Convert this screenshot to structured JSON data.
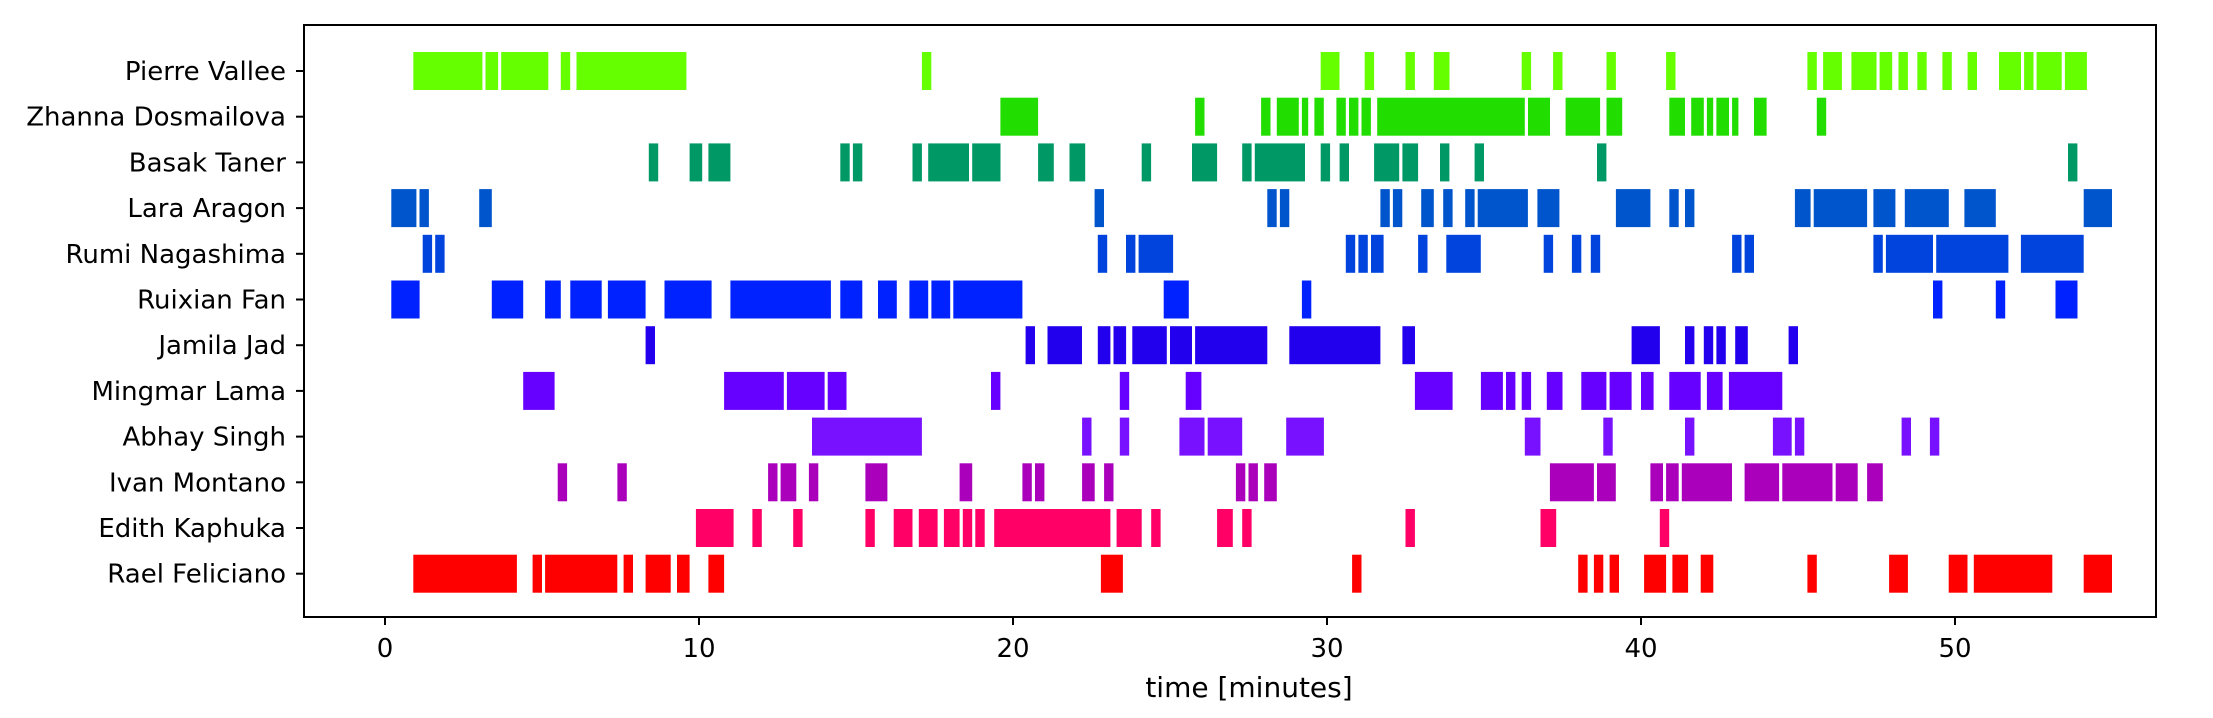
{
  "chart_data": {
    "type": "timeline",
    "xlabel": "time [minutes]",
    "ylabel": "",
    "xlim": [
      -2.6,
      56.4
    ],
    "xticks": [
      0,
      10,
      20,
      30,
      40,
      50
    ],
    "grid": false,
    "legend": "none",
    "series": [
      {
        "name": "Pierre Vallee",
        "color": "#66ff00",
        "segments": [
          [
            0.9,
            3.1
          ],
          [
            3.2,
            3.6
          ],
          [
            3.7,
            5.2
          ],
          [
            5.6,
            5.9
          ],
          [
            6.1,
            9.6
          ],
          [
            17.1,
            17.4
          ],
          [
            29.8,
            30.4
          ],
          [
            31.2,
            31.5
          ],
          [
            32.5,
            32.8
          ],
          [
            33.4,
            33.9
          ],
          [
            36.2,
            36.5
          ],
          [
            37.2,
            37.5
          ],
          [
            38.9,
            39.2
          ],
          [
            40.8,
            41.1
          ],
          [
            45.3,
            45.6
          ],
          [
            45.8,
            46.4
          ],
          [
            46.7,
            47.5
          ],
          [
            47.6,
            48.0
          ],
          [
            48.2,
            48.5
          ],
          [
            48.8,
            49.1
          ],
          [
            49.6,
            49.9
          ],
          [
            50.4,
            50.7
          ],
          [
            51.4,
            52.1
          ],
          [
            52.2,
            52.5
          ],
          [
            52.6,
            53.4
          ],
          [
            53.5,
            54.2
          ]
        ]
      },
      {
        "name": "Zhanna Dosmailova",
        "color": "#22dd00",
        "segments": [
          [
            19.6,
            20.8
          ],
          [
            25.8,
            26.1
          ],
          [
            27.9,
            28.2
          ],
          [
            28.4,
            29.1
          ],
          [
            29.2,
            29.4
          ],
          [
            29.6,
            29.9
          ],
          [
            30.3,
            30.6
          ],
          [
            30.7,
            31.0
          ],
          [
            31.1,
            31.4
          ],
          [
            31.6,
            36.3
          ],
          [
            36.4,
            37.1
          ],
          [
            37.6,
            38.7
          ],
          [
            38.9,
            39.4
          ],
          [
            40.9,
            41.4
          ],
          [
            41.6,
            42.0
          ],
          [
            42.1,
            42.3
          ],
          [
            42.4,
            42.8
          ],
          [
            42.9,
            43.1
          ],
          [
            43.6,
            44.0
          ],
          [
            45.6,
            45.9
          ]
        ]
      },
      {
        "name": "Basak Taner",
        "color": "#009966",
        "segments": [
          [
            8.4,
            8.7
          ],
          [
            9.7,
            10.1
          ],
          [
            10.3,
            11.0
          ],
          [
            14.5,
            14.8
          ],
          [
            14.9,
            15.2
          ],
          [
            16.8,
            17.1
          ],
          [
            17.3,
            18.6
          ],
          [
            18.7,
            19.6
          ],
          [
            20.8,
            21.3
          ],
          [
            21.8,
            22.3
          ],
          [
            24.1,
            24.4
          ],
          [
            25.7,
            26.5
          ],
          [
            27.3,
            27.6
          ],
          [
            27.7,
            29.3
          ],
          [
            29.8,
            30.1
          ],
          [
            30.4,
            30.7
          ],
          [
            31.5,
            32.3
          ],
          [
            32.4,
            32.9
          ],
          [
            33.6,
            33.9
          ],
          [
            34.7,
            35.0
          ],
          [
            38.6,
            38.9
          ],
          [
            53.6,
            53.9
          ]
        ]
      },
      {
        "name": "Lara Aragon",
        "color": "#0055cc",
        "segments": [
          [
            0.2,
            1.0
          ],
          [
            1.1,
            1.4
          ],
          [
            3.0,
            3.4
          ],
          [
            22.6,
            22.9
          ],
          [
            28.1,
            28.4
          ],
          [
            28.5,
            28.8
          ],
          [
            31.7,
            32.0
          ],
          [
            32.1,
            32.4
          ],
          [
            33.0,
            33.4
          ],
          [
            33.7,
            34.0
          ],
          [
            34.4,
            34.7
          ],
          [
            34.8,
            36.4
          ],
          [
            36.7,
            37.4
          ],
          [
            39.2,
            40.3
          ],
          [
            40.9,
            41.2
          ],
          [
            41.4,
            41.7
          ],
          [
            44.9,
            45.4
          ],
          [
            45.5,
            47.2
          ],
          [
            47.4,
            48.1
          ],
          [
            48.4,
            49.8
          ],
          [
            50.3,
            51.3
          ],
          [
            54.1,
            55.0
          ]
        ]
      },
      {
        "name": "Rumi Nagashima",
        "color": "#0044dd",
        "segments": [
          [
            1.2,
            1.5
          ],
          [
            1.6,
            1.9
          ],
          [
            22.7,
            23.0
          ],
          [
            23.6,
            23.9
          ],
          [
            24.0,
            25.1
          ],
          [
            30.6,
            30.9
          ],
          [
            31.0,
            31.3
          ],
          [
            31.4,
            31.8
          ],
          [
            32.9,
            33.2
          ],
          [
            33.8,
            34.9
          ],
          [
            36.9,
            37.2
          ],
          [
            37.8,
            38.1
          ],
          [
            38.4,
            38.7
          ],
          [
            42.9,
            43.2
          ],
          [
            43.3,
            43.6
          ],
          [
            47.4,
            47.7
          ],
          [
            47.8,
            49.3
          ],
          [
            49.4,
            51.7
          ],
          [
            52.1,
            54.1
          ]
        ]
      },
      {
        "name": "Ruixian Fan",
        "color": "#0022ff",
        "segments": [
          [
            0.2,
            1.1
          ],
          [
            3.4,
            4.4
          ],
          [
            5.1,
            5.6
          ],
          [
            5.9,
            6.9
          ],
          [
            7.1,
            8.3
          ],
          [
            8.9,
            10.4
          ],
          [
            11.0,
            14.2
          ],
          [
            14.5,
            15.2
          ],
          [
            15.7,
            16.3
          ],
          [
            16.7,
            17.3
          ],
          [
            17.4,
            18.0
          ],
          [
            18.1,
            20.3
          ],
          [
            24.8,
            25.6
          ],
          [
            29.2,
            29.5
          ],
          [
            49.3,
            49.6
          ],
          [
            51.3,
            51.6
          ],
          [
            53.2,
            53.9
          ]
        ]
      },
      {
        "name": "Jamila Jad",
        "color": "#2200ee",
        "segments": [
          [
            8.3,
            8.6
          ],
          [
            20.4,
            20.7
          ],
          [
            21.1,
            22.2
          ],
          [
            22.7,
            23.1
          ],
          [
            23.2,
            23.6
          ],
          [
            23.8,
            24.9
          ],
          [
            25.0,
            25.7
          ],
          [
            25.8,
            28.1
          ],
          [
            28.8,
            31.7
          ],
          [
            32.4,
            32.8
          ],
          [
            39.7,
            40.6
          ],
          [
            41.4,
            41.7
          ],
          [
            42.0,
            42.3
          ],
          [
            42.4,
            42.7
          ],
          [
            43.0,
            43.4
          ],
          [
            44.7,
            45.0
          ]
        ]
      },
      {
        "name": "Mingmar Lama",
        "color": "#6600ff",
        "segments": [
          [
            4.4,
            5.4
          ],
          [
            10.8,
            12.7
          ],
          [
            12.8,
            14.0
          ],
          [
            14.1,
            14.7
          ],
          [
            19.3,
            19.6
          ],
          [
            23.4,
            23.7
          ],
          [
            25.5,
            26.0
          ],
          [
            32.8,
            34.0
          ],
          [
            34.9,
            35.6
          ],
          [
            35.7,
            36.0
          ],
          [
            36.2,
            36.5
          ],
          [
            37.0,
            37.5
          ],
          [
            38.1,
            38.9
          ],
          [
            39.0,
            39.7
          ],
          [
            40.0,
            40.4
          ],
          [
            40.9,
            41.9
          ],
          [
            42.1,
            42.6
          ],
          [
            42.8,
            44.5
          ]
        ]
      },
      {
        "name": "Abhay Singh",
        "color": "#7711ff",
        "segments": [
          [
            13.6,
            17.1
          ],
          [
            22.2,
            22.5
          ],
          [
            23.4,
            23.7
          ],
          [
            25.3,
            26.1
          ],
          [
            26.2,
            27.3
          ],
          [
            28.7,
            29.9
          ],
          [
            36.3,
            36.8
          ],
          [
            38.8,
            39.1
          ],
          [
            41.4,
            41.7
          ],
          [
            44.2,
            44.8
          ],
          [
            44.9,
            45.2
          ],
          [
            48.3,
            48.6
          ],
          [
            49.2,
            49.5
          ]
        ]
      },
      {
        "name": "Ivan Montano",
        "color": "#aa00bb",
        "segments": [
          [
            5.5,
            5.8
          ],
          [
            7.4,
            7.7
          ],
          [
            12.2,
            12.5
          ],
          [
            12.6,
            13.1
          ],
          [
            13.5,
            13.8
          ],
          [
            15.3,
            16.0
          ],
          [
            18.3,
            18.7
          ],
          [
            20.3,
            20.6
          ],
          [
            20.7,
            21.0
          ],
          [
            22.2,
            22.6
          ],
          [
            22.9,
            23.2
          ],
          [
            27.1,
            27.4
          ],
          [
            27.5,
            27.8
          ],
          [
            28.0,
            28.4
          ],
          [
            37.1,
            38.5
          ],
          [
            38.6,
            39.2
          ],
          [
            40.3,
            40.7
          ],
          [
            40.8,
            41.2
          ],
          [
            41.3,
            42.9
          ],
          [
            43.3,
            44.4
          ],
          [
            44.5,
            46.1
          ],
          [
            46.2,
            46.9
          ],
          [
            47.2,
            47.7
          ]
        ]
      },
      {
        "name": "Edith Kaphuka",
        "color": "#ff0066",
        "segments": [
          [
            9.9,
            11.1
          ],
          [
            11.7,
            12.0
          ],
          [
            13.0,
            13.3
          ],
          [
            15.3,
            15.6
          ],
          [
            16.2,
            16.8
          ],
          [
            17.0,
            17.6
          ],
          [
            17.8,
            18.3
          ],
          [
            18.4,
            18.7
          ],
          [
            18.8,
            19.1
          ],
          [
            19.4,
            23.1
          ],
          [
            23.3,
            24.1
          ],
          [
            24.4,
            24.7
          ],
          [
            26.5,
            27.0
          ],
          [
            27.3,
            27.6
          ],
          [
            32.5,
            32.8
          ],
          [
            36.8,
            37.3
          ],
          [
            40.6,
            40.9
          ]
        ]
      },
      {
        "name": "Rael Feliciano",
        "color": "#ff0000",
        "segments": [
          [
            0.9,
            4.2
          ],
          [
            4.7,
            5.0
          ],
          [
            5.1,
            7.4
          ],
          [
            7.6,
            7.9
          ],
          [
            8.3,
            9.1
          ],
          [
            9.3,
            9.7
          ],
          [
            10.3,
            10.8
          ],
          [
            22.8,
            23.5
          ],
          [
            30.8,
            31.1
          ],
          [
            38.0,
            38.3
          ],
          [
            38.5,
            38.8
          ],
          [
            39.0,
            39.3
          ],
          [
            40.1,
            40.8
          ],
          [
            41.0,
            41.5
          ],
          [
            41.9,
            42.3
          ],
          [
            45.3,
            45.6
          ],
          [
            47.9,
            48.5
          ],
          [
            49.8,
            50.4
          ],
          [
            50.6,
            53.1
          ],
          [
            54.1,
            55.0
          ]
        ]
      }
    ]
  }
}
